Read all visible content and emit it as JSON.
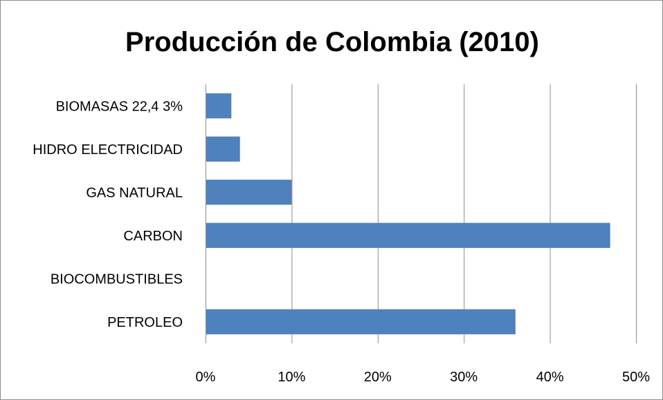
{
  "chart_data": {
    "type": "bar",
    "orientation": "horizontal",
    "title": "Producción de Colombia (2010)",
    "categories": [
      "PETROLEO",
      "BIOCOMBUSTIBLES",
      "CARBON",
      "GAS NATURAL",
      "HIDRO ELECTRICIDAD",
      "BIOMASAS 22,4 3%"
    ],
    "values": [
      36,
      0,
      47,
      10,
      4,
      3
    ],
    "value_unit": "%",
    "xlim": [
      0,
      50
    ],
    "xticks": [
      "0%",
      "10%",
      "20%",
      "30%",
      "40%",
      "50%"
    ],
    "xtick_values": [
      0,
      10,
      20,
      30,
      40,
      50
    ],
    "grid": "vertical",
    "legend": "none",
    "bar_color": "#4F81BD",
    "grid_color": "#8C8C8C"
  }
}
